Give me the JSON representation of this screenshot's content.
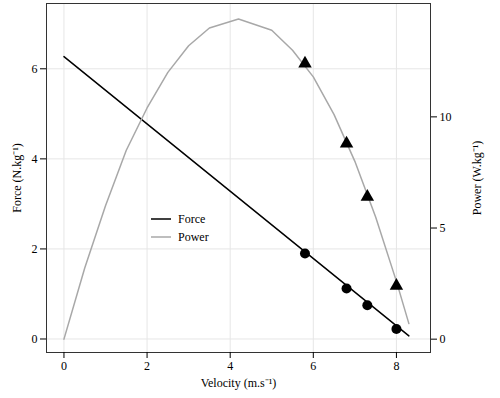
{
  "chart_data": {
    "type": "line",
    "xlabel": "Velocity (m.s⁻¹)",
    "ylabel": "Force (N.kg⁻¹)",
    "y2label": "Power (W.kg⁻¹)",
    "xlim": [
      -0.42,
      8.82
    ],
    "xticks": [
      0,
      2,
      4,
      6,
      8
    ],
    "ylim": [
      -0.3,
      7.45
    ],
    "yticks": [
      0,
      2,
      4,
      6
    ],
    "y2lim": [
      -0.6,
      15.1
    ],
    "y2ticks": [
      0,
      5,
      10
    ],
    "grid": true,
    "legend": "left",
    "series": [
      {
        "name": "Force",
        "color": "#000000",
        "axis": "y",
        "type": "line",
        "x": [
          0,
          8.3
        ],
        "values": [
          6.27,
          0.07
        ],
        "points": {
          "x": [
            5.8,
            6.8,
            7.3,
            8.0
          ],
          "values": [
            1.9,
            1.12,
            0.75,
            0.22
          ],
          "marker": "circle",
          "color": "#000000"
        }
      },
      {
        "name": "Power",
        "color": "#a8a8a8",
        "axis": "y2",
        "type": "line",
        "x": [
          0,
          0.5,
          1,
          1.5,
          2,
          2.5,
          3,
          3.5,
          4.2,
          5,
          5.5,
          6,
          6.5,
          7,
          7.5,
          8,
          8.3
        ],
        "values": [
          0,
          3.2,
          6.0,
          8.5,
          10.4,
          12.0,
          13.2,
          14.0,
          14.4,
          13.9,
          13.0,
          11.8,
          10.1,
          8.0,
          5.5,
          2.6,
          0.7
        ],
        "points": {
          "x": [
            5.8,
            6.8,
            7.3,
            8.0
          ],
          "values": [
            12.4,
            8.8,
            6.4,
            2.4
          ],
          "marker": "triangle",
          "color": "#000000"
        }
      }
    ]
  }
}
